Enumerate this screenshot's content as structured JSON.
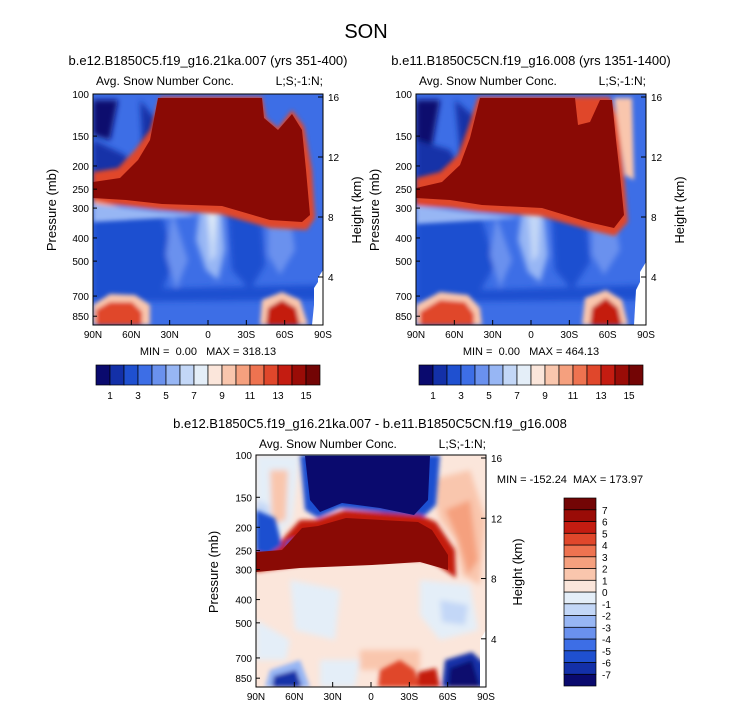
{
  "figure_title": "SON",
  "color_scales": {
    "absolute": [
      "#0a0a6e",
      "#1330a8",
      "#1f50d0",
      "#3d6ee6",
      "#6a91ee",
      "#97b6f4",
      "#c3d7f7",
      "#e4eef8",
      "#fbe6db",
      "#f9c6ad",
      "#f5a07e",
      "#ee7350",
      "#e0472b",
      "#c41c11",
      "#9a0c07",
      "#730505"
    ],
    "difference": [
      "#0a0a6e",
      "#1330a8",
      "#1f50d0",
      "#3d6ee6",
      "#6a91ee",
      "#97b6f4",
      "#c3d7f7",
      "#e4eef8",
      "#fbe6db",
      "#f9c6ad",
      "#f5a07e",
      "#ee7350",
      "#e0472b",
      "#c41c11",
      "#9a0c07",
      "#730505"
    ]
  },
  "chart_data": [
    {
      "type": "heatmap",
      "title": "b.e12.B1850C5.f19_g16.21ka.007 (yrs 351-400)",
      "left_label": "Avg. Snow Number Conc.",
      "right_label": "L;S;-1:N;",
      "xlabel": "",
      "ylabel": "Pressure (mb)",
      "y2label": "Height (km)",
      "x_ticks": [
        "90N",
        "60N",
        "30N",
        "0",
        "30S",
        "60S",
        "90S"
      ],
      "y_ticks": [
        "100",
        "150",
        "200",
        "250",
        "300",
        "400",
        "500",
        "700",
        "850"
      ],
      "y2_ticks": [
        "4",
        "8",
        "12",
        "16"
      ],
      "ylim": [
        100,
        925
      ],
      "stats": "MIN =  0.00   MAX = 318.13",
      "colorbar_labels": [
        "1",
        "3",
        "5",
        "7",
        "9",
        "11",
        "13",
        "15"
      ]
    },
    {
      "type": "heatmap",
      "title": "b.e11.B1850C5CN.f19_g16.008 (yrs 1351-1400)",
      "left_label": "Avg. Snow Number Conc.",
      "right_label": "L;S;-1:N;",
      "xlabel": "",
      "ylabel": "Pressure (mb)",
      "y2label": "Height (km)",
      "x_ticks": [
        "90N",
        "60N",
        "30N",
        "0",
        "30S",
        "60S",
        "90S"
      ],
      "y_ticks": [
        "100",
        "150",
        "200",
        "250",
        "300",
        "400",
        "500",
        "700",
        "850"
      ],
      "y2_ticks": [
        "4",
        "8",
        "12",
        "16"
      ],
      "ylim": [
        100,
        925
      ],
      "stats": "MIN =  0.00   MAX = 464.13",
      "colorbar_labels": [
        "1",
        "3",
        "5",
        "7",
        "9",
        "11",
        "13",
        "15"
      ]
    },
    {
      "type": "heatmap",
      "title": "b.e12.B1850C5.f19_g16.21ka.007 - b.e11.B1850C5CN.f19_g16.008",
      "left_label": "Avg. Snow Number Conc.",
      "right_label": "L;S;-1:N;",
      "xlabel": "",
      "ylabel": "Pressure (mb)",
      "y2label": "Height (km)",
      "x_ticks": [
        "90N",
        "60N",
        "30N",
        "0",
        "30S",
        "60S",
        "90S"
      ],
      "y_ticks": [
        "100",
        "150",
        "200",
        "250",
        "300",
        "400",
        "500",
        "700",
        "850"
      ],
      "y2_ticks": [
        "4",
        "8",
        "12",
        "16"
      ],
      "ylim": [
        100,
        925
      ],
      "stats": "MIN = -152.24  MAX = 173.97",
      "colorbar_labels": [
        "7",
        "6",
        "5",
        "4",
        "3",
        "2",
        "1",
        "0",
        "-1",
        "-2",
        "-3",
        "-4",
        "-5",
        "-6",
        "-7"
      ]
    }
  ]
}
